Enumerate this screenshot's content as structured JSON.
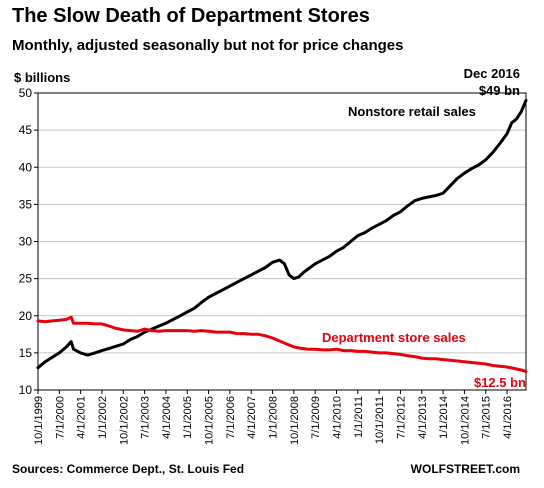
{
  "chart_data": {
    "type": "line",
    "title": "The Slow Death of Department Stores",
    "subtitle": "Monthly, adjusted seasonally but not for price changes",
    "ylabel": "$ billions",
    "ylim": [
      10,
      50
    ],
    "yticks": [
      10,
      15,
      20,
      25,
      30,
      35,
      40,
      45,
      50
    ],
    "grid": "horizontal",
    "x_tick_labels": [
      "10/1/1999",
      "7/1/2000",
      "4/1/2001",
      "1/1/2002",
      "10/1/2002",
      "7/1/2003",
      "4/1/2004",
      "1/1/2005",
      "10/1/2005",
      "7/1/2006",
      "4/1/2007",
      "1/1/2008",
      "10/1/2008",
      "7/1/2009",
      "4/1/2010",
      "1/1/2011",
      "10/1/2011",
      "7/1/2012",
      "4/1/2013",
      "1/1/2014",
      "10/1/2014",
      "7/1/2015",
      "4/1/2016"
    ],
    "x_range": [
      "1999-10",
      "2016-12"
    ],
    "series": [
      {
        "name": "Nonstore retail sales",
        "color": "#000000",
        "points": [
          [
            "1999-10",
            13.0
          ],
          [
            "2000-01",
            13.8
          ],
          [
            "2000-04",
            14.4
          ],
          [
            "2000-07",
            15.0
          ],
          [
            "2000-10",
            15.8
          ],
          [
            "2000-12",
            16.5
          ],
          [
            "2001-01",
            15.5
          ],
          [
            "2001-04",
            15.0
          ],
          [
            "2001-07",
            14.7
          ],
          [
            "2001-10",
            15.0
          ],
          [
            "2002-01",
            15.3
          ],
          [
            "2002-04",
            15.6
          ],
          [
            "2002-07",
            15.9
          ],
          [
            "2002-10",
            16.2
          ],
          [
            "2003-01",
            16.8
          ],
          [
            "2003-04",
            17.2
          ],
          [
            "2003-07",
            17.8
          ],
          [
            "2003-10",
            18.2
          ],
          [
            "2004-01",
            18.6
          ],
          [
            "2004-04",
            19.0
          ],
          [
            "2004-07",
            19.5
          ],
          [
            "2004-10",
            20.0
          ],
          [
            "2005-01",
            20.5
          ],
          [
            "2005-04",
            21.0
          ],
          [
            "2005-07",
            21.8
          ],
          [
            "2005-10",
            22.5
          ],
          [
            "2006-01",
            23.0
          ],
          [
            "2006-04",
            23.5
          ],
          [
            "2006-07",
            24.0
          ],
          [
            "2006-10",
            24.5
          ],
          [
            "2007-01",
            25.0
          ],
          [
            "2007-04",
            25.5
          ],
          [
            "2007-07",
            26.0
          ],
          [
            "2007-10",
            26.5
          ],
          [
            "2008-01",
            27.2
          ],
          [
            "2008-04",
            27.5
          ],
          [
            "2008-06",
            27.0
          ],
          [
            "2008-08",
            25.5
          ],
          [
            "2008-10",
            25.0
          ],
          [
            "2008-12",
            25.2
          ],
          [
            "2009-02",
            25.8
          ],
          [
            "2009-04",
            26.3
          ],
          [
            "2009-07",
            27.0
          ],
          [
            "2009-10",
            27.5
          ],
          [
            "2010-01",
            28.0
          ],
          [
            "2010-04",
            28.7
          ],
          [
            "2010-07",
            29.2
          ],
          [
            "2010-10",
            30.0
          ],
          [
            "2011-01",
            30.8
          ],
          [
            "2011-04",
            31.2
          ],
          [
            "2011-07",
            31.8
          ],
          [
            "2011-10",
            32.3
          ],
          [
            "2012-01",
            32.8
          ],
          [
            "2012-04",
            33.5
          ],
          [
            "2012-07",
            34.0
          ],
          [
            "2012-10",
            34.8
          ],
          [
            "2013-01",
            35.5
          ],
          [
            "2013-04",
            35.8
          ],
          [
            "2013-07",
            36.0
          ],
          [
            "2013-10",
            36.2
          ],
          [
            "2014-01",
            36.5
          ],
          [
            "2014-04",
            37.5
          ],
          [
            "2014-07",
            38.5
          ],
          [
            "2014-10",
            39.2
          ],
          [
            "2015-01",
            39.8
          ],
          [
            "2015-04",
            40.3
          ],
          [
            "2015-07",
            41.0
          ],
          [
            "2015-10",
            42.0
          ],
          [
            "2016-01",
            43.2
          ],
          [
            "2016-04",
            44.5
          ],
          [
            "2016-06",
            46.0
          ],
          [
            "2016-08",
            46.5
          ],
          [
            "2016-10",
            47.5
          ],
          [
            "2016-12",
            49.0
          ]
        ]
      },
      {
        "name": "Department store sales",
        "color": "#e8000b",
        "points": [
          [
            "1999-10",
            19.3
          ],
          [
            "2000-01",
            19.2
          ],
          [
            "2000-04",
            19.3
          ],
          [
            "2000-07",
            19.4
          ],
          [
            "2000-10",
            19.5
          ],
          [
            "2000-12",
            19.8
          ],
          [
            "2001-01",
            19.0
          ],
          [
            "2001-04",
            19.0
          ],
          [
            "2001-07",
            19.0
          ],
          [
            "2001-10",
            18.9
          ],
          [
            "2002-01",
            18.9
          ],
          [
            "2002-04",
            18.6
          ],
          [
            "2002-07",
            18.3
          ],
          [
            "2002-10",
            18.1
          ],
          [
            "2003-01",
            18.0
          ],
          [
            "2003-04",
            17.9
          ],
          [
            "2003-07",
            18.2
          ],
          [
            "2003-10",
            18.0
          ],
          [
            "2004-01",
            17.9
          ],
          [
            "2004-04",
            18.0
          ],
          [
            "2004-07",
            18.0
          ],
          [
            "2004-10",
            18.0
          ],
          [
            "2005-01",
            18.0
          ],
          [
            "2005-04",
            17.9
          ],
          [
            "2005-07",
            18.0
          ],
          [
            "2005-10",
            17.9
          ],
          [
            "2006-01",
            17.8
          ],
          [
            "2006-04",
            17.8
          ],
          [
            "2006-07",
            17.8
          ],
          [
            "2006-10",
            17.6
          ],
          [
            "2007-01",
            17.6
          ],
          [
            "2007-04",
            17.5
          ],
          [
            "2007-07",
            17.5
          ],
          [
            "2007-10",
            17.3
          ],
          [
            "2008-01",
            17.0
          ],
          [
            "2008-04",
            16.6
          ],
          [
            "2008-07",
            16.2
          ],
          [
            "2008-10",
            15.8
          ],
          [
            "2009-01",
            15.6
          ],
          [
            "2009-04",
            15.5
          ],
          [
            "2009-07",
            15.5
          ],
          [
            "2009-10",
            15.4
          ],
          [
            "2010-01",
            15.4
          ],
          [
            "2010-04",
            15.5
          ],
          [
            "2010-07",
            15.3
          ],
          [
            "2010-10",
            15.3
          ],
          [
            "2011-01",
            15.2
          ],
          [
            "2011-04",
            15.2
          ],
          [
            "2011-07",
            15.1
          ],
          [
            "2011-10",
            15.0
          ],
          [
            "2012-01",
            15.0
          ],
          [
            "2012-04",
            14.9
          ],
          [
            "2012-07",
            14.8
          ],
          [
            "2012-10",
            14.6
          ],
          [
            "2013-01",
            14.5
          ],
          [
            "2013-04",
            14.3
          ],
          [
            "2013-07",
            14.2
          ],
          [
            "2013-10",
            14.2
          ],
          [
            "2014-01",
            14.1
          ],
          [
            "2014-04",
            14.0
          ],
          [
            "2014-07",
            13.9
          ],
          [
            "2014-10",
            13.8
          ],
          [
            "2015-01",
            13.7
          ],
          [
            "2015-04",
            13.6
          ],
          [
            "2015-07",
            13.5
          ],
          [
            "2015-10",
            13.3
          ],
          [
            "2016-01",
            13.2
          ],
          [
            "2016-04",
            13.1
          ],
          [
            "2016-07",
            12.9
          ],
          [
            "2016-10",
            12.7
          ],
          [
            "2016-12",
            12.5
          ]
        ]
      }
    ],
    "annotations": {
      "end_date": "Dec 2016",
      "nonstore_end": "$49 bn",
      "nonstore_label": "Nonstore retail sales",
      "dept_label": "Department store sales",
      "dept_end": "$12.5 bn"
    }
  },
  "footer": {
    "sources": "Sources: Commerce Dept., St. Louis Fed",
    "brand": "WOLFSTREET.com"
  }
}
